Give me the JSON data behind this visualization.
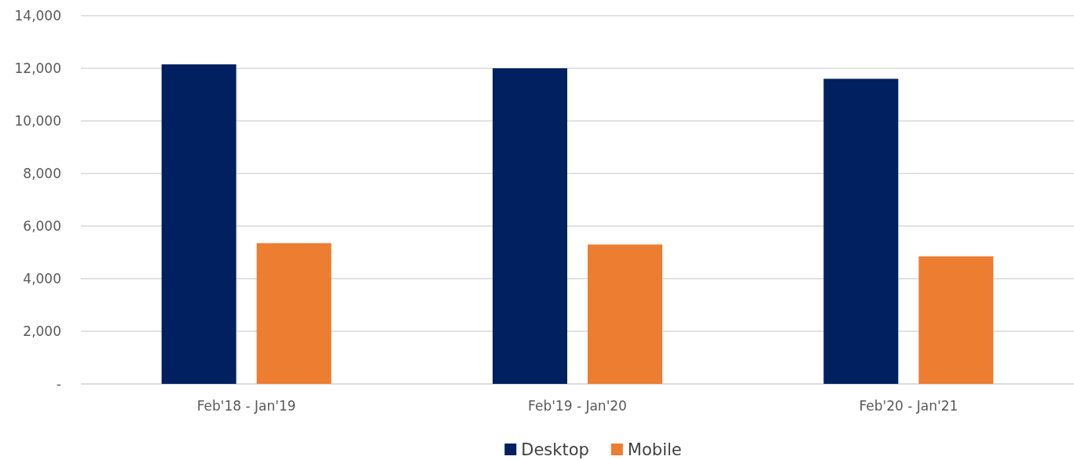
{
  "chart_data": {
    "type": "bar",
    "categories": [
      "Feb'18 - Jan'19",
      "Feb'19 - Jan'20",
      "Feb'20 - Jan'21"
    ],
    "series": [
      {
        "name": "Desktop",
        "color": "#002060",
        "values": [
          12150,
          12000,
          11600
        ]
      },
      {
        "name": "Mobile",
        "color": "#ed7d31",
        "values": [
          5350,
          5300,
          4850
        ]
      }
    ],
    "ylim": [
      0,
      14000
    ],
    "yticks": [
      {
        "value": 0,
        "label": "-"
      },
      {
        "value": 2000,
        "label": "2,000"
      },
      {
        "value": 4000,
        "label": "4,000"
      },
      {
        "value": 6000,
        "label": "6,000"
      },
      {
        "value": 8000,
        "label": "8,000"
      },
      {
        "value": 10000,
        "label": "10,000"
      },
      {
        "value": 12000,
        "label": "12,000"
      },
      {
        "value": 14000,
        "label": "14,000"
      }
    ],
    "grid": "y",
    "legend": "bottom"
  }
}
